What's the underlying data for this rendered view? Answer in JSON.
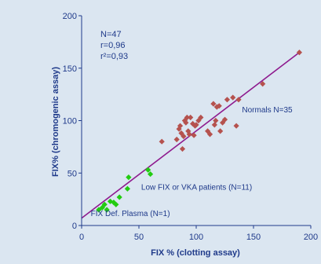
{
  "chart_data": {
    "type": "scatter",
    "xlabel": "FIX % (clotting assay)",
    "ylabel": "FIX% (chromogenic assay)",
    "xlim": [
      0,
      200
    ],
    "ylim": [
      0,
      200
    ],
    "xticks": [
      0,
      50,
      100,
      150,
      200
    ],
    "yticks": [
      0,
      50,
      100,
      150,
      200
    ],
    "grid": false,
    "stats": [
      "N=47",
      "r=0,96",
      "r²=0,93"
    ],
    "annotations": [
      {
        "text": "Normals N=35",
        "x": 140,
        "y": 108
      },
      {
        "text": "Low FIX or VKA patients (N=11)",
        "x": 52,
        "y": 34
      },
      {
        "text": "FIX Def. Plasma (N=1)",
        "x": 8,
        "y": 9
      }
    ],
    "colors": {
      "normals": "#b5524e",
      "low": "#22cc11",
      "def_plasma": "#22cc11",
      "regression": "#8e1a8e",
      "axis_text": "#1f3a8a",
      "background": "#dbe6f1"
    },
    "regression_line": {
      "x": [
        0,
        190
      ],
      "y": [
        7,
        165
      ]
    },
    "series": [
      {
        "name": "Normals N=35",
        "marker": "diamond",
        "points": [
          [
            70,
            80
          ],
          [
            83,
            82
          ],
          [
            85,
            92
          ],
          [
            86,
            95
          ],
          [
            87,
            88
          ],
          [
            88,
            73
          ],
          [
            89,
            85
          ],
          [
            90,
            100
          ],
          [
            91,
            98
          ],
          [
            92,
            103
          ],
          [
            93,
            90
          ],
          [
            94,
            87
          ],
          [
            95,
            103
          ],
          [
            97,
            97
          ],
          [
            98,
            86
          ],
          [
            99,
            95
          ],
          [
            100,
            96
          ],
          [
            102,
            100
          ],
          [
            104,
            103
          ],
          [
            110,
            90
          ],
          [
            112,
            87
          ],
          [
            115,
            116
          ],
          [
            116,
            96
          ],
          [
            117,
            100
          ],
          [
            118,
            113
          ],
          [
            120,
            114
          ],
          [
            121,
            90
          ],
          [
            123,
            98
          ],
          [
            125,
            101
          ],
          [
            127,
            120
          ],
          [
            132,
            122
          ],
          [
            135,
            95
          ],
          [
            137,
            120
          ],
          [
            158,
            135
          ],
          [
            190,
            165
          ]
        ]
      },
      {
        "name": "Low FIX or VKA patients (N=11)",
        "marker": "diamond",
        "points": [
          [
            18,
            17
          ],
          [
            20,
            20
          ],
          [
            22,
            15
          ],
          [
            25,
            23
          ],
          [
            28,
            22
          ],
          [
            30,
            20
          ],
          [
            33,
            27
          ],
          [
            40,
            35
          ],
          [
            41,
            46
          ],
          [
            58,
            53
          ],
          [
            60,
            49
          ]
        ]
      },
      {
        "name": "FIX Def. Plasma (N=1)",
        "marker": "diamond",
        "points": [
          [
            15,
            15
          ]
        ]
      }
    ]
  }
}
